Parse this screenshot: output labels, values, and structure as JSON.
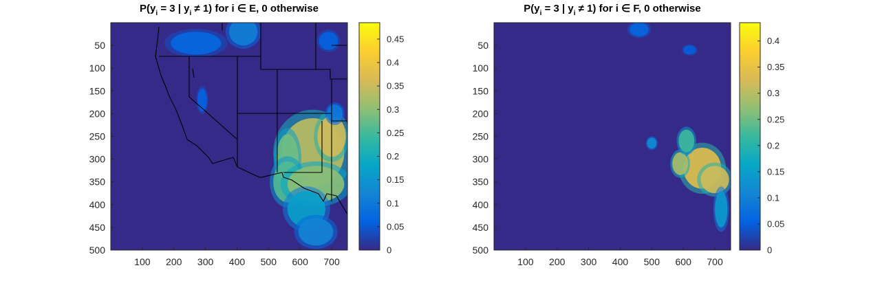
{
  "figure": {
    "background": "#ffffff",
    "colormap": "parula",
    "colormap_stops": [
      "#352a87",
      "#0363e1",
      "#1485d4",
      "#06a7c6",
      "#38b99e",
      "#92bf73",
      "#d9ba56",
      "#fcce2e",
      "#f9fb0e"
    ],
    "background_value_color": "#352a87",
    "border_color": "#000000"
  },
  "chart_data": [
    {
      "type": "heatmap",
      "title_parts": [
        "P(y",
        "i",
        " = 3 | y",
        "i",
        " ≠ 1) for i ∈ E, 0 otherwise"
      ],
      "y_ticks": [
        "50",
        "100",
        "150",
        "200",
        "250",
        "300",
        "350",
        "400",
        "450",
        "500"
      ],
      "x_ticks": [
        "100",
        "200",
        "300",
        "400",
        "500",
        "600",
        "700"
      ],
      "xlim": [
        0,
        750
      ],
      "ylim": [
        0,
        500
      ],
      "y_reversed": true,
      "colorbar": {
        "ticks": [
          "0",
          "0.05",
          "0.1",
          "0.15",
          "0.2",
          "0.25",
          "0.3",
          "0.35",
          "0.4",
          "0.45"
        ],
        "range": [
          0,
          0.485
        ]
      },
      "hotspots": [
        {
          "x": 640,
          "y": 285,
          "rx": 100,
          "ry": 75,
          "value": 0.34
        },
        {
          "x": 700,
          "y": 250,
          "rx": 45,
          "ry": 45,
          "value": 0.36
        },
        {
          "x": 560,
          "y": 300,
          "rx": 35,
          "ry": 55,
          "value": 0.28
        },
        {
          "x": 560,
          "y": 350,
          "rx": 45,
          "ry": 45,
          "value": 0.26
        },
        {
          "x": 650,
          "y": 355,
          "rx": 90,
          "ry": 40,
          "value": 0.3
        },
        {
          "x": 620,
          "y": 410,
          "rx": 60,
          "ry": 40,
          "value": 0.17
        },
        {
          "x": 650,
          "y": 460,
          "rx": 55,
          "ry": 30,
          "value": 0.12
        },
        {
          "x": 420,
          "y": 20,
          "rx": 45,
          "ry": 30,
          "value": 0.11
        },
        {
          "x": 270,
          "y": 45,
          "rx": 80,
          "ry": 25,
          "value": 0.07
        },
        {
          "x": 690,
          "y": 40,
          "rx": 30,
          "ry": 20,
          "value": 0.06
        },
        {
          "x": 290,
          "y": 170,
          "rx": 15,
          "ry": 25,
          "value": 0.06
        },
        {
          "x": 710,
          "y": 200,
          "rx": 25,
          "ry": 20,
          "value": 0.1
        }
      ]
    },
    {
      "type": "heatmap",
      "title_parts": [
        "P(y",
        "i",
        " = 3 | y",
        "i",
        " ≠ 1) for i ∈ F, 0 otherwise"
      ],
      "y_ticks": [
        "50",
        "100",
        "150",
        "200",
        "250",
        "300",
        "350",
        "400",
        "450",
        "500"
      ],
      "x_ticks": [
        "100",
        "200",
        "300",
        "400",
        "500",
        "600",
        "700"
      ],
      "xlim": [
        0,
        750
      ],
      "ylim": [
        0,
        500
      ],
      "y_reversed": true,
      "colorbar": {
        "ticks": [
          "0",
          "0.05",
          "0.1",
          "0.15",
          "0.2",
          "0.25",
          "0.3",
          "0.35",
          "0.4"
        ],
        "range": [
          0,
          0.435
        ]
      },
      "hotspots": [
        {
          "x": 660,
          "y": 320,
          "rx": 60,
          "ry": 45,
          "value": 0.34
        },
        {
          "x": 700,
          "y": 345,
          "rx": 45,
          "ry": 30,
          "value": 0.32
        },
        {
          "x": 590,
          "y": 310,
          "rx": 25,
          "ry": 25,
          "value": 0.29
        },
        {
          "x": 610,
          "y": 260,
          "rx": 25,
          "ry": 25,
          "value": 0.22
        },
        {
          "x": 720,
          "y": 410,
          "rx": 20,
          "ry": 40,
          "value": 0.14
        },
        {
          "x": 500,
          "y": 265,
          "rx": 15,
          "ry": 12,
          "value": 0.12
        },
        {
          "x": 460,
          "y": 15,
          "rx": 30,
          "ry": 15,
          "value": 0.06
        },
        {
          "x": 620,
          "y": 60,
          "rx": 20,
          "ry": 10,
          "value": 0.05
        }
      ]
    }
  ]
}
